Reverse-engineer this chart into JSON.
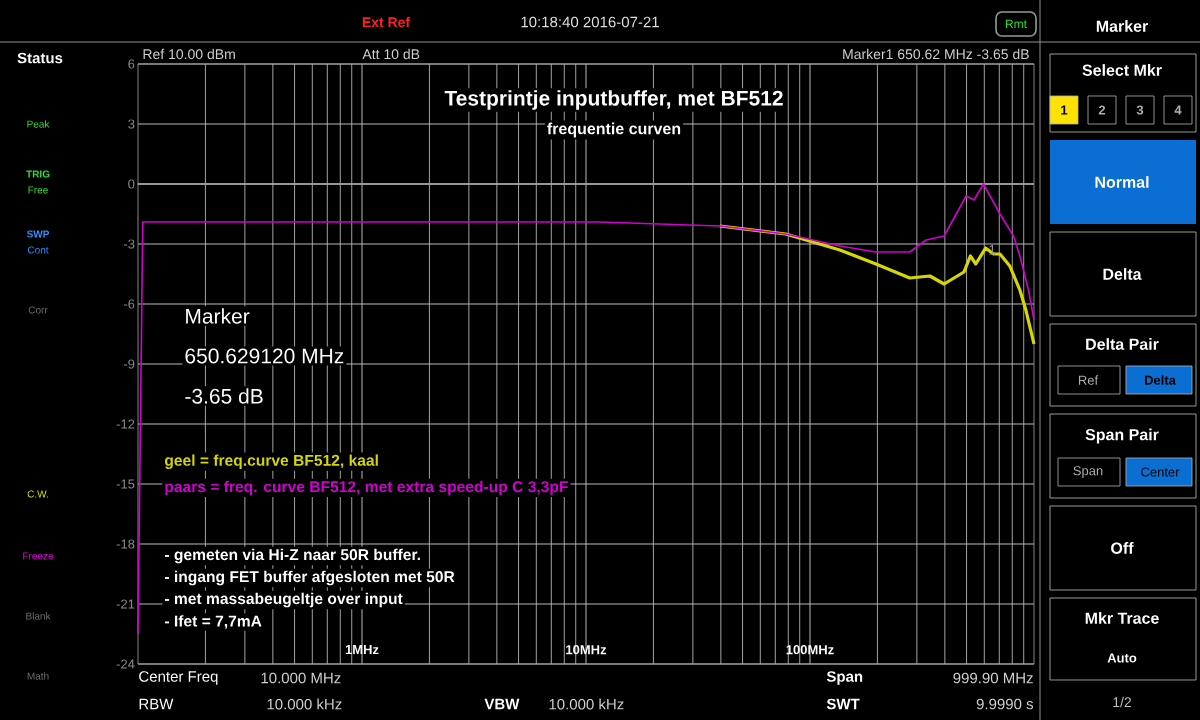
{
  "chart_data": {
    "type": "line",
    "title": "Testprintje inputbuffer, met BF512",
    "subtitle": "frequentie curven",
    "x": [
      0.1,
      0.105,
      1,
      5,
      11.5,
      39.6,
      78,
      136,
      197,
      279,
      330,
      397,
      498,
      540,
      595,
      705,
      810,
      865,
      945,
      1000
    ],
    "series": [
      {
        "name": "geel   = freq.curve BF512, kaal",
        "color": "#d6d600",
        "x": [
          39.6,
          78,
          136,
          197,
          279,
          343,
          397,
          487,
          520,
          550,
          608,
          660,
          705,
          780,
          865,
          920,
          1000
        ],
        "values": [
          -2.1,
          -2.5,
          -3.3,
          -4.0,
          -4.7,
          -4.6,
          -5.0,
          -4.4,
          -3.6,
          -4.0,
          -3.2,
          -3.5,
          -3.5,
          -4.1,
          -5.3,
          -6.3,
          -8.0
        ]
      },
      {
        "name": "paars = freq. curve BF512, met extra speed-up C 3,3pF",
        "color": "#d000d0",
        "values": [
          -22.5,
          -1.9,
          -1.9,
          -1.9,
          -1.9,
          -2.1,
          -2.5,
          -3.1,
          -3.4,
          -3.4,
          -2.8,
          -2.6,
          -0.6,
          -0.8,
          0.0,
          -1.5,
          -2.6,
          -3.6,
          -5.3,
          -6.8
        ]
      }
    ],
    "xlim": [
      0.1,
      1000
    ],
    "ylim": [
      -24,
      6
    ],
    "log": "x",
    "xticks": [
      {
        "value": 1,
        "label": "1MHz"
      },
      {
        "value": 10,
        "label": "10MHz"
      },
      {
        "value": 100,
        "label": "100MHz"
      }
    ],
    "yticks": [
      -24,
      -21,
      -18,
      -15,
      -12,
      -9,
      -6,
      -3,
      0,
      3,
      6
    ],
    "grid": true,
    "legend": "left",
    "ref_lines": [
      {
        "axis": "y",
        "value": 0,
        "color": "#a8a8a8"
      }
    ],
    "annotations": [
      "Marker",
      "650.629120 MHz",
      "-3.65 dB",
      "- gemeten via Hi-Z naar 50R buffer.",
      "- ingang FET buffer afgesloten met 50R",
      "- met massabeugeltje over input",
      "- Ifet = 7,7mA",
      {
        "text": "1",
        "x": 650.62,
        "y": -3.65
      },
      "Ext Ref",
      "10:18:40 2016-07-21",
      "Rmt",
      "Ref 10.00 dBm",
      "Att 10 dB",
      "Marker1  650.62 MHz   -3.65 dB",
      "Center Freq",
      "10.000 MHz",
      "Span",
      "999.90 MHz",
      "RBW",
      "10.000 kHz",
      "VBW",
      "10.000 kHz",
      "SWT",
      "9.9990 s",
      "Status",
      "Peak",
      "TRIG",
      "Free",
      "SWP",
      "Cont",
      "Corr",
      "C.W.",
      "Freeze",
      "Blank",
      "Math",
      "Marker",
      "Select Mkr",
      "1",
      "2",
      "3",
      "4",
      "Normal",
      "Delta",
      "Delta Pair",
      "Ref",
      "Delta",
      "Span Pair",
      "Span",
      "Center",
      "Off",
      "Mkr Trace",
      "Auto",
      "1/2"
    ]
  }
}
